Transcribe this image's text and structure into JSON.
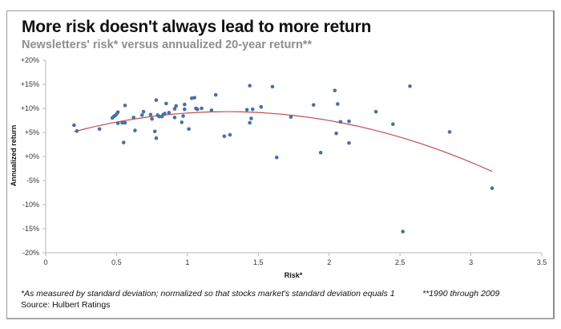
{
  "chart_data": {
    "type": "scatter",
    "title": "More risk doesn't always lead to more return",
    "subtitle": "Newsletters' risk* versus annualized 20-year return**",
    "xlabel": "Risk*",
    "ylabel": "Annualized return",
    "xlim": [
      0,
      3.5
    ],
    "ylim": [
      -20,
      20
    ],
    "x_ticks": [
      0,
      0.5,
      1,
      1.5,
      2,
      2.5,
      3,
      3.5
    ],
    "x_tick_labels": [
      "0",
      "0.5",
      "1",
      "1.5",
      "2",
      "2.5",
      "3",
      "3.5"
    ],
    "y_ticks": [
      20,
      15,
      10,
      5,
      0,
      -5,
      -10,
      -15,
      -20
    ],
    "y_tick_labels": [
      "+20%",
      "+15%",
      "+10%",
      "+5%",
      "+0%",
      "-5%",
      "-10%",
      "-15%",
      "-20%"
    ],
    "grid": false,
    "legend": "none",
    "series": [
      {
        "name": "Newsletters",
        "color": "#4a6fa5",
        "points": [
          [
            0.2,
            6.5
          ],
          [
            0.22,
            5.3
          ],
          [
            0.38,
            5.7
          ],
          [
            0.47,
            8.0
          ],
          [
            0.48,
            8.3
          ],
          [
            0.49,
            8.5
          ],
          [
            0.5,
            8.8
          ],
          [
            0.51,
            9.2
          ],
          [
            0.51,
            6.9
          ],
          [
            0.54,
            7.0
          ],
          [
            0.56,
            7.0
          ],
          [
            0.56,
            10.6
          ],
          [
            0.55,
            2.9
          ],
          [
            0.62,
            8.1
          ],
          [
            0.63,
            5.4
          ],
          [
            0.68,
            8.6
          ],
          [
            0.69,
            9.3
          ],
          [
            0.74,
            8.7
          ],
          [
            0.75,
            7.8
          ],
          [
            0.78,
            11.7
          ],
          [
            0.77,
            5.2
          ],
          [
            0.78,
            3.8
          ],
          [
            0.79,
            8.6
          ],
          [
            0.8,
            8.3
          ],
          [
            0.82,
            8.3
          ],
          [
            0.83,
            8.7
          ],
          [
            0.84,
            8.9
          ],
          [
            0.85,
            11.0
          ],
          [
            0.87,
            9.1
          ],
          [
            0.91,
            8.1
          ],
          [
            0.91,
            9.9
          ],
          [
            0.92,
            10.5
          ],
          [
            0.96,
            7.1
          ],
          [
            0.97,
            8.4
          ],
          [
            0.98,
            10.8
          ],
          [
            0.98,
            9.8
          ],
          [
            1.01,
            5.7
          ],
          [
            1.03,
            12.1
          ],
          [
            1.05,
            12.2
          ],
          [
            1.06,
            10.0
          ],
          [
            1.07,
            9.8
          ],
          [
            1.1,
            10.0
          ],
          [
            1.17,
            9.6
          ],
          [
            1.2,
            12.8
          ],
          [
            1.26,
            4.2
          ],
          [
            1.3,
            4.5
          ],
          [
            1.42,
            9.7
          ],
          [
            1.44,
            14.7
          ],
          [
            1.46,
            9.8
          ],
          [
            1.45,
            7.9
          ],
          [
            1.44,
            7.0
          ],
          [
            1.52,
            10.3
          ],
          [
            1.6,
            14.5
          ],
          [
            1.63,
            -0.2
          ],
          [
            1.73,
            8.2
          ],
          [
            1.89,
            10.7
          ],
          [
            1.94,
            0.8
          ],
          [
            2.04,
            13.7
          ],
          [
            2.06,
            10.9
          ],
          [
            2.05,
            4.8
          ],
          [
            2.08,
            7.2
          ],
          [
            2.14,
            7.3
          ],
          [
            2.14,
            2.8
          ],
          [
            2.33,
            9.3
          ],
          [
            2.45,
            6.7
          ],
          [
            2.57,
            14.6
          ],
          [
            2.52,
            -15.6
          ],
          [
            2.85,
            5.1
          ],
          [
            3.15,
            -6.6
          ]
        ]
      }
    ],
    "trendline": {
      "type": "polynomial-2",
      "color": "#c0504d",
      "coefficients": {
        "a": -3.55,
        "b": 9.088,
        "c": 3.484
      },
      "x_range": [
        0.2,
        3.15
      ]
    }
  },
  "footnotes": {
    "risk_note": "*As measured by standard deviation; normalized so that stocks market's standard deviation equals 1",
    "period_note": "**1990 through 2009",
    "source": "Source: Hulbert Ratings"
  }
}
